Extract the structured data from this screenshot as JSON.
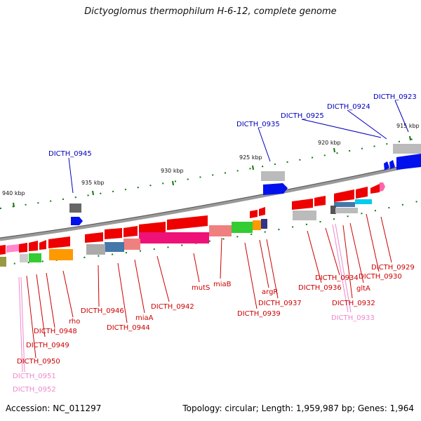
{
  "title": "Dictyoglomus thermophilum H-6-12, complete genome",
  "footer": {
    "accession": "Accession: NC_011297",
    "summary": "Topology: circular; Length: 1,959,987 bp; Genes: 1,964"
  },
  "scale": {
    "ticks": [
      "915 kbp",
      "920 kbp",
      "925 kbp",
      "930 kbp",
      "935 kbp",
      "940 kbp"
    ]
  },
  "colors": {
    "red_label": "#cc0000",
    "blue_label": "#0000bb",
    "pink_label": "#ee88cc",
    "backbone": "#888888",
    "tick": "#117711"
  },
  "labels": {
    "top": [
      "DICTH_0923",
      "DICTH_0924",
      "DICTH_0925",
      "DICTH_0935",
      "DICTH_0945"
    ],
    "bottom": [
      "DICTH_0929",
      "DICTH_0930",
      "gltA",
      "DICTH_0932",
      "DICTH_0933",
      "DICTH_0934",
      "DICTH_0936",
      "argR",
      "DICTH_0937",
      "DICTH_0939",
      "miaB",
      "mutS",
      "DICTH_0942",
      "miaA",
      "DICTH_0944",
      "DICTH_0946",
      "rho",
      "DICTH_0948",
      "DICTH_0949",
      "DICTH_0950",
      "DICTH_0951",
      "DICTH_0952"
    ]
  }
}
